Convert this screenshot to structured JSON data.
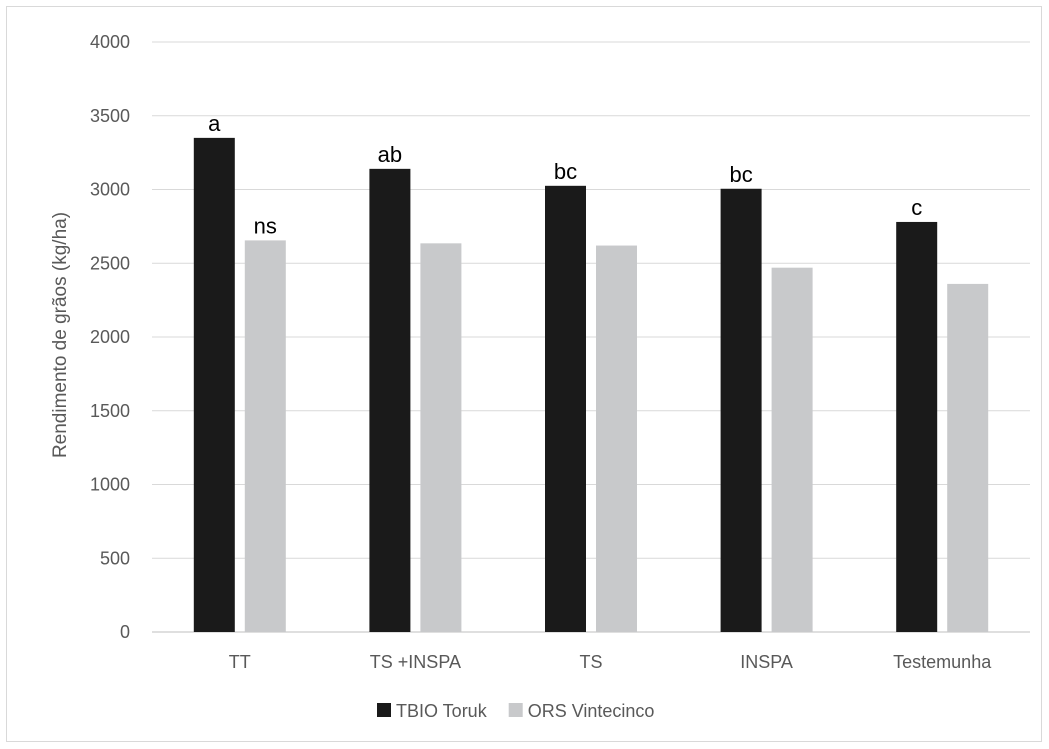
{
  "chart_data": {
    "type": "bar",
    "title": "",
    "xlabel": "",
    "ylabel": "Rendimento de grãos (kg/ha)",
    "categories": [
      "TT",
      "TS +INSPA",
      "TS",
      "INSPA",
      "Testemunha"
    ],
    "series": [
      {
        "name": "TBIO Toruk",
        "color": "#1a1a1a",
        "values": [
          3350,
          3140,
          3025,
          3005,
          2780
        ],
        "labels": [
          "a",
          "ab",
          "bc",
          "bc",
          "c"
        ]
      },
      {
        "name": "ORS Vintecinco",
        "color": "#c8c9cb",
        "values": [
          2655,
          2635,
          2620,
          2470,
          2360
        ],
        "labels": [
          "ns",
          "",
          "",
          "",
          ""
        ]
      }
    ],
    "ylim": [
      0,
      4000
    ],
    "yticks": [
      0,
      500,
      1000,
      1500,
      2000,
      2500,
      3000,
      3500,
      4000
    ],
    "grid": true,
    "legend_position": "bottom"
  }
}
